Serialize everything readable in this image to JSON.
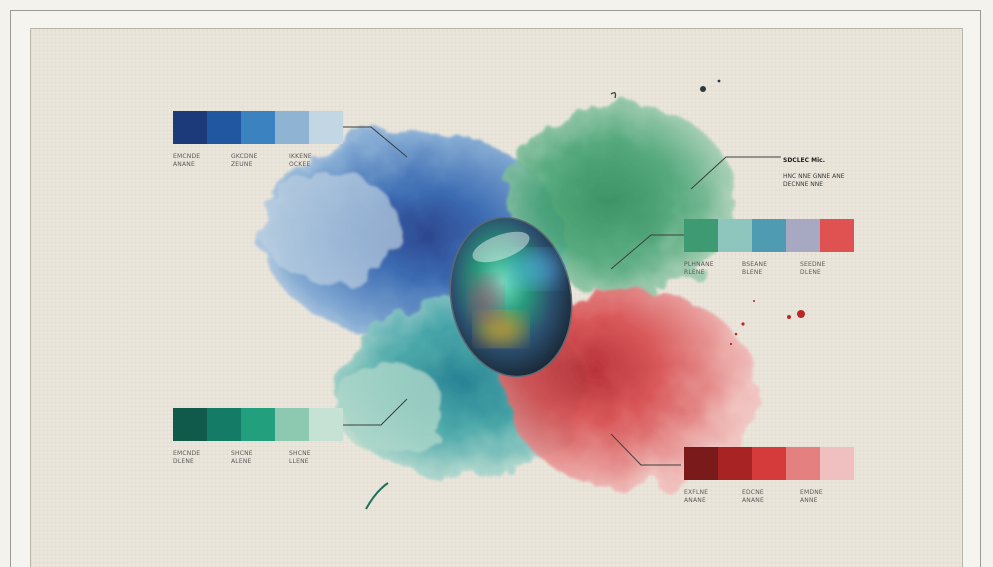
{
  "palettes": [
    {
      "id": "blue",
      "colors": [
        "#1c3a7a",
        "#2156a0",
        "#3a82c0",
        "#8fb3d2",
        "#c3d6e4"
      ],
      "labels": [
        "EMCNDE\nANANE",
        "GKCDNE\nZEUNE",
        "IKKENE\nOCKEE"
      ]
    },
    {
      "id": "green-mixed",
      "colors": [
        "#3e9a72",
        "#8ec6bd",
        "#4e9bb2",
        "#a7a8c2",
        "#e05252"
      ],
      "labels": [
        "PLHNANE\nRLENE",
        "BSEANE\nBLENE",
        "SEEDNE\nDLENE"
      ]
    },
    {
      "id": "teal",
      "colors": [
        "#0f5a4a",
        "#137b66",
        "#22a07e",
        "#8dc8b1",
        "#c6e2d4"
      ],
      "labels": [
        "EMCNDE\nDLENE",
        "SHCNE\nALENE",
        "SHCNE\nLLENE"
      ]
    },
    {
      "id": "red",
      "colors": [
        "#7a1a1a",
        "#a82424",
        "#d63b3b",
        "#e58080",
        "#f0c0c0"
      ],
      "labels": [
        "EXFLNE\nANANE",
        "EDCNE\nANANE",
        "EMDNE\nANNE"
      ]
    }
  ],
  "note": {
    "title": "SDCLEC Mic.",
    "lines": "HNC NNE GNNE ANE\nDECNNE NNE"
  },
  "colors": {
    "blue": "#2f6fb5",
    "green": "#3d9b6c",
    "teal": "#1f8a8c",
    "red": "#d24848",
    "background": "#ebe6dc"
  }
}
